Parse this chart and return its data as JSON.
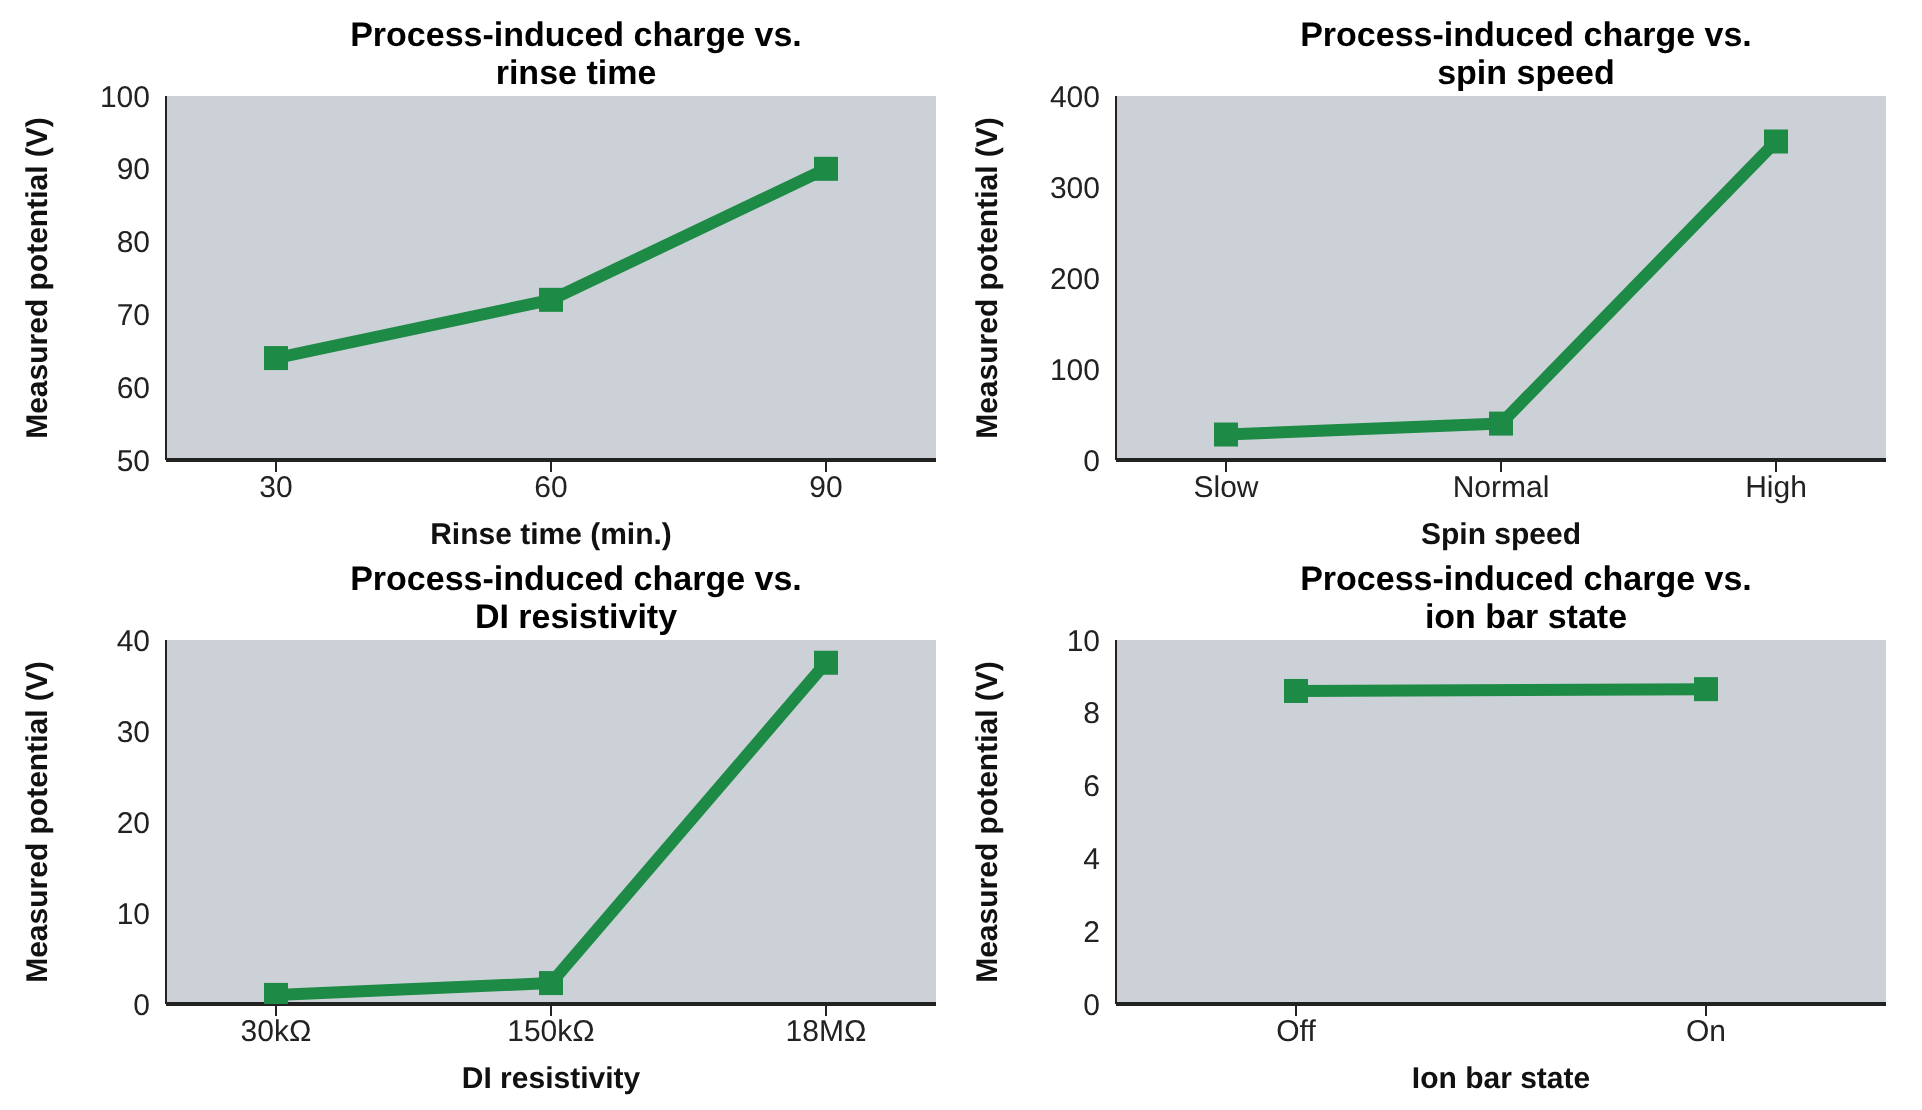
{
  "chart_data": [
    {
      "type": "line",
      "title": "Process-induced charge vs. rinse time",
      "xlabel": "Rinse time (min.)",
      "ylabel": "Measured potential (V)",
      "categories": [
        "30",
        "60",
        "90"
      ],
      "series": [
        {
          "color": "#1d8a45",
          "values": [
            64,
            72,
            90
          ]
        }
      ],
      "ylim": [
        50,
        100
      ],
      "yticks": [
        50,
        60,
        70,
        80,
        90,
        100
      ],
      "marker": "square",
      "grid": false,
      "legend": false
    },
    {
      "type": "line",
      "title": "Process-induced charge vs. spin speed",
      "xlabel": "Spin speed",
      "ylabel": "Measured potential (V)",
      "categories": [
        "Slow",
        "Normal",
        "High"
      ],
      "series": [
        {
          "color": "#1d8a45",
          "values": [
            28,
            40,
            350
          ]
        }
      ],
      "ylim": [
        0,
        400
      ],
      "yticks": [
        0,
        100,
        200,
        300,
        400
      ],
      "marker": "square",
      "grid": false,
      "legend": false
    },
    {
      "type": "line",
      "title": "Process-induced charge vs. DI resistivity",
      "xlabel": "DI resistivity",
      "ylabel": "Measured potential (V)",
      "categories": [
        "30kΩ",
        "150kΩ",
        "18MΩ"
      ],
      "series": [
        {
          "color": "#1d8a45",
          "values": [
            1,
            2.3,
            37.5
          ]
        }
      ],
      "ylim": [
        0,
        40
      ],
      "yticks": [
        0,
        10,
        20,
        30,
        40
      ],
      "marker": "square",
      "grid": false,
      "legend": false
    },
    {
      "type": "line",
      "title": "Process-induced charge vs. ion bar state",
      "xlabel": "Ion bar state",
      "ylabel": "Measured potential (V)",
      "categories": [
        "Off",
        "On"
      ],
      "series": [
        {
          "color": "#1d8a45",
          "values": [
            8.6,
            8.65
          ]
        }
      ],
      "ylim": [
        0,
        10
      ],
      "yticks": [
        0,
        2,
        4,
        6,
        8,
        10
      ],
      "marker": "square",
      "grid": false,
      "legend": false
    }
  ]
}
